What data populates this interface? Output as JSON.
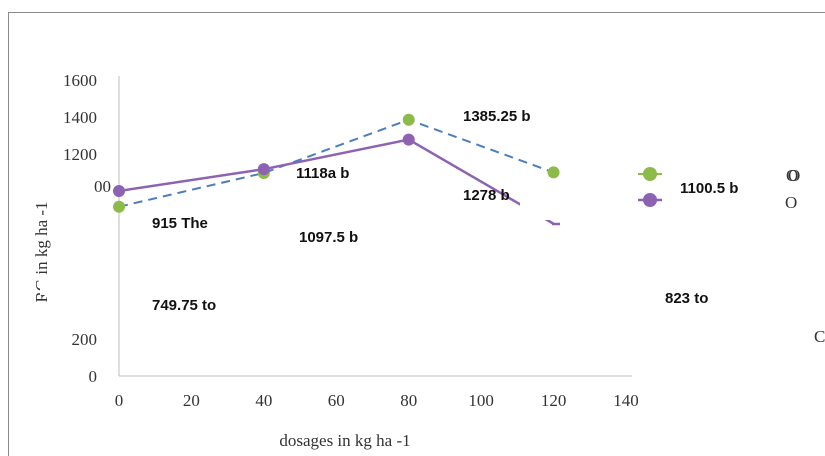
{
  "chart_data": {
    "type": "line",
    "xlabel": "dosages in kg ha -1",
    "ylabel": "RG in kg ha -1",
    "xlim": [
      0,
      140
    ],
    "ylim": [
      0,
      1600
    ],
    "x_ticks": [
      "0",
      "20",
      "40",
      "60",
      "80",
      "100",
      "120",
      "140"
    ],
    "y_ticks": [
      "0",
      "200",
      "1200",
      "1400",
      "1600"
    ],
    "grid": false,
    "legend_position": "right",
    "x": [
      0,
      40,
      80,
      120
    ],
    "series": [
      {
        "values": [
          915,
          1097.5,
          1385.25,
          1100.5
        ],
        "color": "#8cbb4a",
        "line_color": "#4a7ec0",
        "line_style": "dashed"
      },
      {
        "values": [
          1000,
          1118,
          1278,
          823
        ],
        "color": "#8e62b2",
        "line_color": "#8e62b2",
        "line_style": "solid"
      }
    ],
    "data_labels": [
      "915 The",
      "1118a b",
      "1385.25 b",
      "1097.5 b",
      "1278 b",
      "749.75 to",
      "823 to"
    ],
    "legend": {
      "entries": [
        "1100.5 b"
      ],
      "marker_color_1": "#8cbb4a",
      "marker_color_2": "#8e62b2",
      "symbol_1": "O",
      "symbol_2": "O"
    },
    "fragments": [
      "00",
      "O",
      "C"
    ]
  }
}
